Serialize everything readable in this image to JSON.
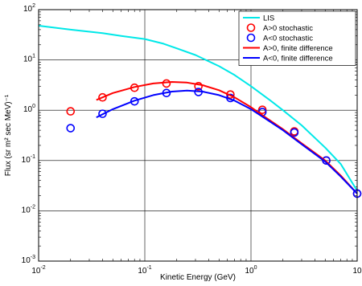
{
  "chart_data": {
    "type": "line",
    "title": "",
    "xlabel": "Kinetic Energy (GeV)",
    "ylabel": "Flux (sr m² sec MeV)⁻¹",
    "xscale": "log",
    "yscale": "log",
    "xlim": [
      0.01,
      10
    ],
    "ylim": [
      0.001,
      100
    ],
    "grid": "major",
    "legend_position": "top-right",
    "x_ticks": [
      {
        "value": 0.01,
        "base": "10",
        "exp": "-2"
      },
      {
        "value": 0.1,
        "base": "10",
        "exp": "-1"
      },
      {
        "value": 1,
        "base": "10",
        "exp": "0"
      },
      {
        "value": 10,
        "base": "10",
        "exp": ""
      }
    ],
    "y_ticks": [
      {
        "value": 0.001,
        "base": "10",
        "exp": "-3"
      },
      {
        "value": 0.01,
        "base": "10",
        "exp": "-2"
      },
      {
        "value": 0.1,
        "base": "10",
        "exp": "-1"
      },
      {
        "value": 1,
        "base": "10",
        "exp": "0"
      },
      {
        "value": 10,
        "base": "10",
        "exp": "1"
      },
      {
        "value": 100,
        "base": "10",
        "exp": "2"
      }
    ],
    "series": [
      {
        "name": "LIS",
        "kind": "line",
        "color": "#00e8e8",
        "x": [
          0.01,
          0.02,
          0.04,
          0.06,
          0.1,
          0.15,
          0.2,
          0.3,
          0.5,
          0.7,
          1.0,
          1.5,
          2.0,
          3.0,
          5.0,
          7.0,
          10.0
        ],
        "y": [
          48,
          40,
          34,
          30,
          26,
          21,
          17,
          12.5,
          7.5,
          5.0,
          3.0,
          1.6,
          1.0,
          0.5,
          0.18,
          0.085,
          0.025
        ]
      },
      {
        "name": "A>0 stochastic",
        "kind": "marker",
        "color": "#ff0000",
        "x": [
          0.02,
          0.04,
          0.08,
          0.16,
          0.32,
          0.64,
          1.28,
          2.56,
          5.12,
          10.0
        ],
        "y": [
          0.95,
          1.8,
          2.8,
          3.4,
          3.0,
          2.05,
          1.02,
          0.38,
          0.1,
          0.022
        ]
      },
      {
        "name": "A<0 stochastic",
        "kind": "marker",
        "color": "#0000ff",
        "x": [
          0.02,
          0.04,
          0.08,
          0.16,
          0.32,
          0.64,
          1.28,
          2.56,
          5.12,
          10.0
        ],
        "y": [
          0.44,
          0.85,
          1.5,
          2.2,
          2.3,
          1.75,
          0.92,
          0.36,
          0.1,
          0.022
        ]
      },
      {
        "name": "A>0, finite difference",
        "kind": "line",
        "color": "#ff0000",
        "x": [
          0.035,
          0.05,
          0.08,
          0.12,
          0.18,
          0.25,
          0.35,
          0.5,
          0.7,
          1.0,
          1.4,
          2.0,
          3.0,
          5.0,
          7.0,
          10.0
        ],
        "y": [
          1.6,
          2.2,
          2.9,
          3.4,
          3.65,
          3.55,
          3.15,
          2.5,
          1.8,
          1.15,
          0.7,
          0.42,
          0.22,
          0.1,
          0.05,
          0.022
        ]
      },
      {
        "name": "A<0, finite difference",
        "kind": "line",
        "color": "#0000ff",
        "x": [
          0.035,
          0.05,
          0.08,
          0.12,
          0.18,
          0.25,
          0.35,
          0.5,
          0.7,
          1.0,
          1.4,
          2.0,
          3.0,
          5.0,
          7.0,
          10.0
        ],
        "y": [
          0.72,
          1.05,
          1.55,
          2.0,
          2.35,
          2.45,
          2.35,
          2.0,
          1.55,
          1.05,
          0.66,
          0.4,
          0.21,
          0.095,
          0.048,
          0.022
        ]
      }
    ]
  }
}
